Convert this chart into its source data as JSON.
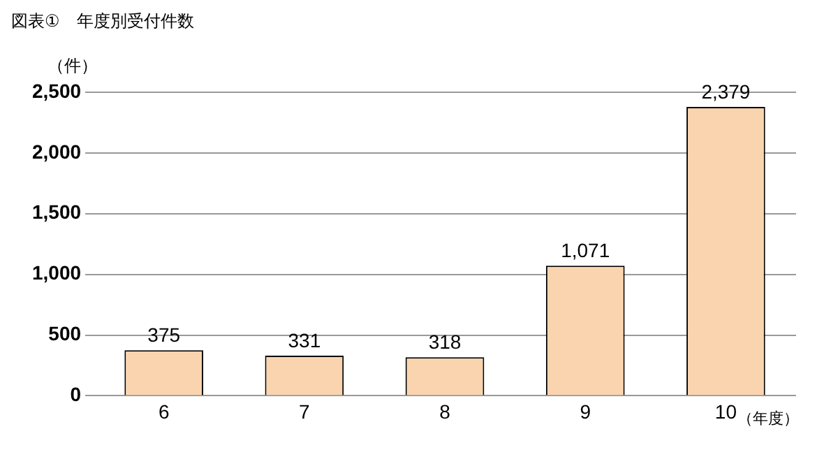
{
  "chart_data": {
    "type": "bar",
    "title": "図表①　年度別受付件数",
    "ylabel": "（件）",
    "xlabel": "（年度）",
    "categories": [
      "6",
      "7",
      "8",
      "9",
      "10"
    ],
    "values": [
      375,
      331,
      318,
      1071,
      2379
    ],
    "value_labels": [
      "375",
      "331",
      "318",
      "1,071",
      "2,379"
    ],
    "color": "#fad4ae",
    "ylim": [
      0,
      2500
    ],
    "yticks": [
      0,
      500,
      {
        "value": 1000,
        "label": "1,000"
      },
      {
        "value": 1500,
        "label": "1,500"
      },
      {
        "value": 2000,
        "label": "2,000"
      },
      {
        "value": 2500,
        "label": "2,500"
      }
    ],
    "grid": "y"
  }
}
